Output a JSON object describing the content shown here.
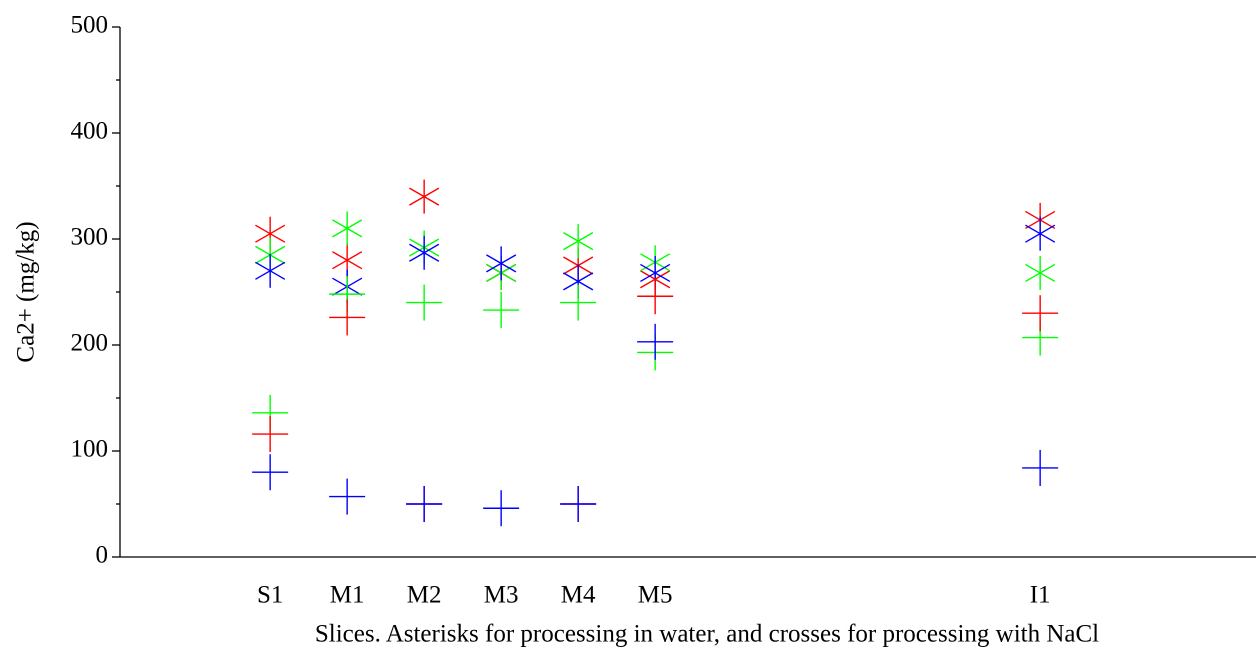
{
  "chart_data": {
    "type": "scatter",
    "ylabel": "Ca2+ (mg/kg)",
    "xlabel": "Slices. Asterisks for processing in water, and crosses for processing with NaCl",
    "categories": [
      null,
      "S1",
      "M1",
      "M2",
      "M3",
      "M4",
      "M5",
      null,
      null,
      null,
      null,
      "I1",
      null
    ],
    "ylim": [
      0,
      500
    ],
    "yticks": [
      0,
      100,
      200,
      300,
      400,
      500
    ],
    "yminorticks": [
      50,
      150,
      250,
      350,
      450
    ],
    "series": [
      {
        "marker": "asterisk",
        "color": "#ff0000",
        "values": [
          null,
          305,
          280,
          340,
          268,
          275,
          262,
          null,
          null,
          null,
          null,
          318,
          null
        ]
      },
      {
        "marker": "asterisk",
        "color": "#00ff00",
        "values": [
          null,
          285,
          310,
          292,
          268,
          298,
          278,
          null,
          null,
          null,
          null,
          268,
          null
        ]
      },
      {
        "marker": "asterisk",
        "color": "#0000ff",
        "values": [
          null,
          270,
          255,
          287,
          277,
          260,
          268,
          null,
          null,
          null,
          null,
          305,
          null
        ]
      },
      {
        "marker": "cross",
        "color": "#00ff00",
        "values": [
          null,
          136,
          248,
          240,
          233,
          240,
          193,
          null,
          null,
          null,
          null,
          207,
          null
        ]
      },
      {
        "marker": "cross",
        "color": "#ff0000",
        "values": [
          null,
          116,
          226,
          50,
          null,
          50,
          246,
          null,
          null,
          null,
          null,
          230,
          null
        ]
      },
      {
        "marker": "cross",
        "color": "#0000ff",
        "values": [
          null,
          80,
          57,
          50,
          46,
          50,
          203,
          null,
          null,
          null,
          null,
          84,
          null
        ]
      }
    ]
  }
}
